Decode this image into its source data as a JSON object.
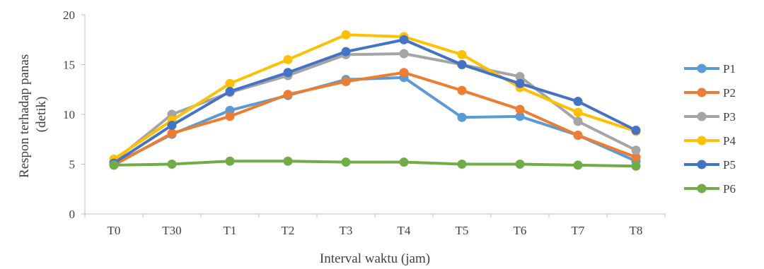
{
  "chart_data": {
    "type": "line",
    "xlabel": "Interval waktu (jam)",
    "ylabel": [
      "Respon terhadap panas",
      "(detik)"
    ],
    "categories": [
      "T0",
      "T30",
      "T1",
      "T2",
      "T3",
      "T4",
      "T5",
      "T6",
      "T7",
      "T8"
    ],
    "ylim": [
      0,
      20
    ],
    "yticks": [
      0,
      5,
      10,
      15,
      20
    ],
    "grid": false,
    "legend_position": "right",
    "series": [
      {
        "name": "P1",
        "color": "#5b9bd5",
        "values": [
          5.0,
          8.0,
          10.4,
          11.9,
          13.5,
          13.7,
          9.7,
          9.8,
          7.9,
          5.3
        ]
      },
      {
        "name": "P2",
        "color": "#ed7d31",
        "values": [
          4.9,
          8.1,
          9.8,
          12.0,
          13.3,
          14.2,
          12.4,
          10.5,
          7.9,
          5.7
        ]
      },
      {
        "name": "P3",
        "color": "#a5a5a5",
        "values": [
          5.3,
          10.0,
          12.2,
          13.9,
          16.0,
          16.1,
          15.0,
          13.8,
          9.3,
          6.4
        ]
      },
      {
        "name": "P4",
        "color": "#ffc000",
        "values": [
          5.5,
          9.4,
          13.1,
          15.5,
          18.0,
          17.8,
          16.0,
          12.7,
          10.2,
          8.3
        ]
      },
      {
        "name": "P5",
        "color": "#4472c4",
        "values": [
          5.1,
          8.9,
          12.3,
          14.2,
          16.3,
          17.5,
          15.0,
          13.1,
          11.3,
          8.4
        ]
      },
      {
        "name": "P6",
        "color": "#70ad47",
        "values": [
          4.9,
          5.0,
          5.3,
          5.3,
          5.2,
          5.2,
          5.0,
          5.0,
          4.9,
          4.8
        ]
      }
    ]
  }
}
